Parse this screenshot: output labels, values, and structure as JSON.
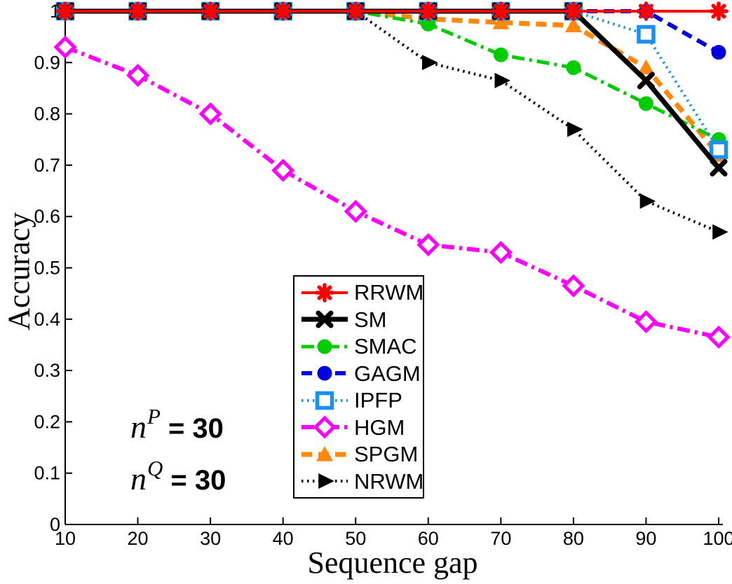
{
  "chart_data": {
    "type": "line",
    "title": "",
    "xlabel": "Sequence gap",
    "ylabel": "Accuracy",
    "xlim": [
      10,
      100
    ],
    "ylim": [
      0,
      1
    ],
    "grid": false,
    "legend_position": "inside lower-center",
    "x_ticks": [
      10,
      20,
      30,
      40,
      50,
      60,
      70,
      80,
      90,
      100
    ],
    "y_ticks": [
      0,
      0.1,
      0.2,
      0.3,
      0.4,
      0.5,
      0.6,
      0.7,
      0.8,
      0.9,
      1
    ],
    "y_tick_labels": [
      "0",
      "0.1",
      "0.2",
      "0.3",
      "0.4",
      "0.5",
      "0.6",
      "0.7",
      "0.8",
      "0.9",
      "1"
    ],
    "x": [
      10,
      20,
      30,
      40,
      50,
      60,
      70,
      80,
      90,
      100
    ],
    "series": [
      {
        "name": "RRWM",
        "color": "#ff0000",
        "line_style": "solid",
        "line_width": 4,
        "marker": "star",
        "values": [
          1,
          1,
          1,
          1,
          1,
          1,
          1,
          1,
          1,
          1
        ]
      },
      {
        "name": "SM",
        "color": "#000000",
        "line_style": "solid",
        "line_width": 7,
        "marker": "x",
        "values": [
          1,
          1,
          1,
          1,
          1,
          1,
          1,
          1,
          0.865,
          0.695
        ]
      },
      {
        "name": "SMAC",
        "color": "#00cc00",
        "line_style": "dashdot",
        "line_width": 5,
        "marker": "circle-filled",
        "values": [
          1,
          1,
          1,
          1,
          1,
          0.975,
          0.915,
          0.89,
          0.82,
          0.75
        ]
      },
      {
        "name": "GAGM",
        "color": "#0000dd",
        "line_style": "dashed",
        "line_width": 6,
        "marker": "circle-filled",
        "values": [
          1,
          1,
          1,
          1,
          1,
          1,
          1,
          1,
          1,
          0.92
        ]
      },
      {
        "name": "IPFP",
        "color": "#1b8ff2",
        "line_style": "dotted",
        "line_width": 4,
        "marker": "square-open",
        "values": [
          1,
          1,
          1,
          1,
          1,
          1,
          1,
          1,
          0.955,
          0.73
        ]
      },
      {
        "name": "HGM",
        "color": "#ff00ff",
        "line_style": "dashdot",
        "line_width": 6,
        "marker": "diamond-open",
        "values": [
          0.93,
          0.875,
          0.8,
          0.69,
          0.61,
          0.545,
          0.53,
          0.465,
          0.395,
          0.365
        ]
      },
      {
        "name": "SPGM",
        "color": "#ff8811",
        "line_style": "dashed",
        "line_width": 7,
        "marker": "triangle-up-filled",
        "values": [
          1,
          1,
          1,
          1,
          1,
          0.985,
          0.978,
          0.972,
          0.89,
          0.72
        ]
      },
      {
        "name": "NRWM",
        "color": "#000000",
        "line_style": "dotted",
        "line_width": 4,
        "marker": "triangle-right-filled",
        "values": [
          1,
          1,
          1,
          1,
          1,
          0.9,
          0.865,
          0.77,
          0.63,
          0.57
        ]
      }
    ],
    "draw_order": [
      "HGM",
      "NRWM",
      "SPGM",
      "SMAC",
      "GAGM",
      "IPFP",
      "SM",
      "RRWM"
    ],
    "annotations": [
      {
        "base": "n",
        "sup": "P",
        "eq": "= 30"
      },
      {
        "base": "n",
        "sup": "Q",
        "eq": "= 30"
      }
    ]
  }
}
